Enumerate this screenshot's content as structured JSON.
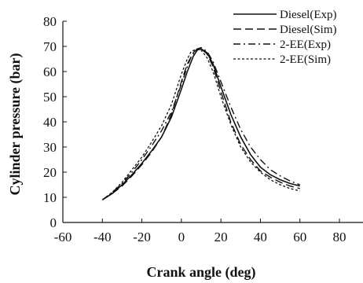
{
  "chart_data": {
    "type": "line",
    "title": "",
    "xlabel": "Crank angle (deg)",
    "ylabel": "Cylinder pressure (bar)",
    "xlim": [
      -60,
      80
    ],
    "ylim": [
      0,
      80
    ],
    "xticks": [
      "-60",
      "-40",
      "-20",
      "0",
      "20",
      "40",
      "60",
      "80"
    ],
    "yticks": [
      "0",
      "10",
      "20",
      "30",
      "40",
      "50",
      "60",
      "70",
      "80"
    ],
    "grid": false,
    "legend_position": "top-right",
    "series": [
      {
        "name": "Diesel(Exp)",
        "style": "solid",
        "x": [
          -40,
          -35,
          -30,
          -25,
          -20,
          -15,
          -10,
          -5,
          0,
          3,
          6,
          8,
          10,
          13,
          16,
          20,
          25,
          30,
          35,
          40,
          45,
          50,
          55,
          60
        ],
        "y": [
          9,
          11.5,
          15,
          19,
          23.5,
          28.5,
          34,
          42,
          53,
          60,
          66,
          68.5,
          69,
          67.5,
          63,
          54,
          43,
          34,
          27,
          22,
          19,
          17,
          15.5,
          14.5
        ]
      },
      {
        "name": "Diesel(Sim)",
        "style": "dashed",
        "x": [
          -40,
          -35,
          -30,
          -25,
          -20,
          -15,
          -10,
          -5,
          0,
          3,
          6,
          8,
          10,
          13,
          16,
          20,
          25,
          30,
          35,
          40,
          45,
          50,
          55,
          60
        ],
        "y": [
          9,
          11.5,
          14.5,
          18.5,
          23,
          28,
          34,
          43,
          56,
          63,
          67.5,
          69,
          69,
          67,
          62,
          52,
          40,
          31,
          25,
          20.5,
          18,
          16,
          14.5,
          13.5
        ]
      },
      {
        "name": "2-EE(Exp)",
        "style": "dashdot",
        "x": [
          -40,
          -35,
          -30,
          -25,
          -20,
          -15,
          -10,
          -5,
          0,
          3,
          5,
          8,
          10,
          13,
          16,
          20,
          25,
          30,
          35,
          40,
          45,
          50,
          55,
          60
        ],
        "y": [
          9,
          12,
          15.5,
          20,
          25,
          30.5,
          36.5,
          44,
          55,
          62,
          66,
          69,
          69.5,
          68,
          64,
          56,
          46,
          37,
          30,
          25,
          21,
          18.5,
          16.5,
          15
        ]
      },
      {
        "name": "2-EE(Sim)",
        "style": "dotted",
        "x": [
          -40,
          -35,
          -30,
          -25,
          -20,
          -15,
          -10,
          -5,
          0,
          3,
          5,
          8,
          10,
          13,
          16,
          20,
          25,
          30,
          35,
          40,
          45,
          50,
          55,
          60
        ],
        "y": [
          9,
          12,
          16,
          21,
          26,
          32,
          38.5,
          47,
          59,
          65,
          68,
          69,
          68.5,
          65.5,
          60,
          50,
          39,
          30,
          24,
          20,
          17,
          15,
          13.5,
          12.5
        ]
      }
    ]
  }
}
